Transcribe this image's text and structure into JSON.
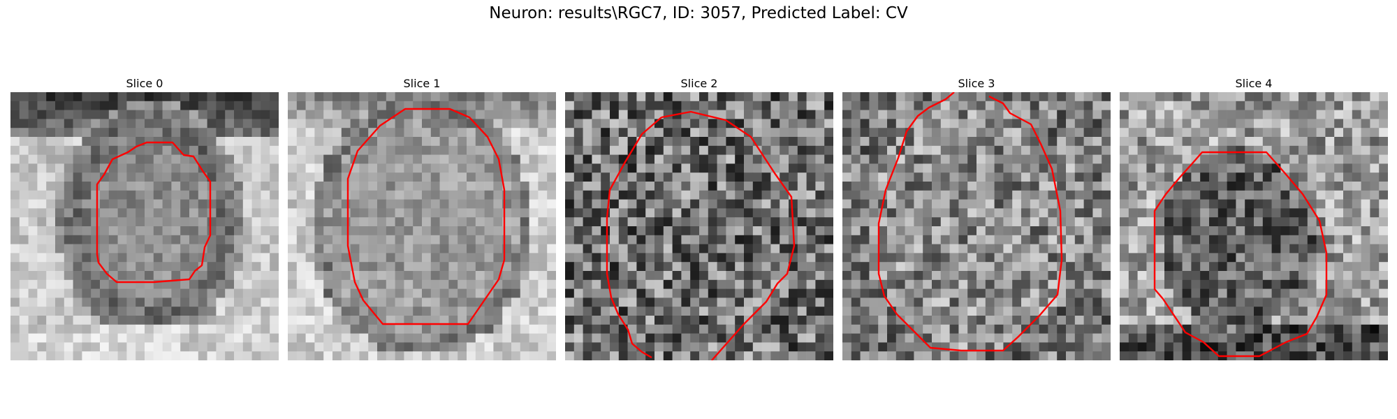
{
  "figure": {
    "title": "Neuron: results\\RGC7, ID: 3057, Predicted Label: CV"
  },
  "panels": [
    {
      "title": "Slice 0"
    },
    {
      "title": "Slice 1"
    },
    {
      "title": "Slice 2"
    },
    {
      "title": "Slice 3"
    },
    {
      "title": "Slice 4"
    }
  ],
  "contour_color": "#ff0000",
  "colormap": "grayscale"
}
